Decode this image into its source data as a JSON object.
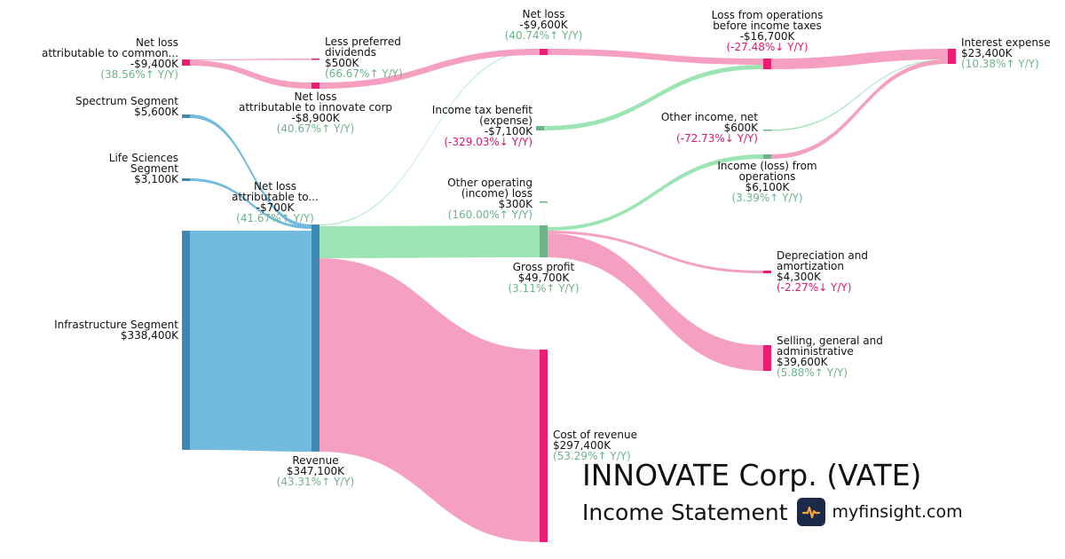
{
  "chart_data": {
    "type": "sankey",
    "units": "K",
    "colors": {
      "blue": "#6ab7dc",
      "green": "#98e3b0",
      "pink": "#f49bbe",
      "pos": "#6db38a",
      "neg": "#e0156e"
    },
    "nodes": [
      {
        "id": "infrastructure",
        "label": [
          "Infrastructure Segment"
        ],
        "value": "$338,400K",
        "change": ""
      },
      {
        "id": "spectrum",
        "label": [
          "Spectrum Segment"
        ],
        "value": "$5,600K",
        "change": ""
      },
      {
        "id": "lifesci",
        "label": [
          "Life Sciences",
          "Segment"
        ],
        "value": "$3,100K",
        "change": ""
      },
      {
        "id": "revenue",
        "label": [
          "Revenue"
        ],
        "value": "$347,100K",
        "change": "(43.31%↑ Y/Y)",
        "dir": "up"
      },
      {
        "id": "nci",
        "label": [
          "Net loss",
          "attributable to..."
        ],
        "value": "-$700K",
        "change": "(41.67%↑ Y/Y)",
        "dir": "up"
      },
      {
        "id": "gross",
        "label": [
          "Gross profit"
        ],
        "value": "$49,700K",
        "change": "(3.11%↑ Y/Y)",
        "dir": "up"
      },
      {
        "id": "cor",
        "label": [
          "Cost of revenue"
        ],
        "value": "$297,400K",
        "change": "(53.29%↑ Y/Y)",
        "dir": "up"
      },
      {
        "id": "otherop",
        "label": [
          "Other operating",
          "(income) loss"
        ],
        "value": "$300K",
        "change": "(160.00%↑ Y/Y)",
        "dir": "up"
      },
      {
        "id": "taxben",
        "label": [
          "Income tax benefit",
          "(expense)"
        ],
        "value": "-$7,100K",
        "change": "(-329.03%↓ Y/Y)",
        "dir": "down"
      },
      {
        "id": "netloss",
        "label": [
          "Net loss"
        ],
        "value": "-$9,600K",
        "change": "(40.74%↑ Y/Y)",
        "dir": "up"
      },
      {
        "id": "nlcommon",
        "label": [
          "Net loss",
          "attributable to common..."
        ],
        "value": "-$9,400K",
        "change": "(38.56%↑ Y/Y)",
        "dir": "up"
      },
      {
        "id": "pref",
        "label": [
          "Less preferred",
          "dividends"
        ],
        "value": "$500K",
        "change": "(66.67%↑ Y/Y)",
        "dir": "up"
      },
      {
        "id": "nlinnovate",
        "label": [
          "Net loss",
          "attributable to innovate corp"
        ],
        "value": "-$8,900K",
        "change": "(40.67%↑ Y/Y)",
        "dir": "up"
      },
      {
        "id": "lossops",
        "label": [
          "Loss from operations",
          "before income taxes"
        ],
        "value": "-$16,700K",
        "change": "(-27.48%↓ Y/Y)",
        "dir": "down"
      },
      {
        "id": "otherinc",
        "label": [
          "Other income, net"
        ],
        "value": "$600K",
        "change": "(-72.73%↓ Y/Y)",
        "dir": "down"
      },
      {
        "id": "incops",
        "label": [
          "Income (loss) from",
          "operations"
        ],
        "value": "$6,100K",
        "change": "(3.39%↑ Y/Y)",
        "dir": "up"
      },
      {
        "id": "interest",
        "label": [
          "Interest expense"
        ],
        "value": "$23,400K",
        "change": "(10.38%↑ Y/Y)",
        "dir": "up"
      },
      {
        "id": "da",
        "label": [
          "Depreciation and",
          "amortization"
        ],
        "value": "$4,300K",
        "change": "(-2.27%↓ Y/Y)",
        "dir": "down"
      },
      {
        "id": "sga",
        "label": [
          "Selling, general and",
          "administrative"
        ],
        "value": "$39,600K",
        "change": "(5.88%↑ Y/Y)",
        "dir": "up"
      }
    ],
    "links": [
      {
        "source": "infrastructure",
        "target": "revenue",
        "value": 338400,
        "color": "blue"
      },
      {
        "source": "spectrum",
        "target": "revenue",
        "value": 5600,
        "color": "blue"
      },
      {
        "source": "lifesci",
        "target": "revenue",
        "value": 3100,
        "color": "blue"
      },
      {
        "source": "nci",
        "target": "revenue",
        "value": 700,
        "color": "blue"
      },
      {
        "source": "nci",
        "target": "netloss",
        "value": 700,
        "color": "green"
      },
      {
        "source": "revenue",
        "target": "gross",
        "value": 49700,
        "color": "green"
      },
      {
        "source": "revenue",
        "target": "cor",
        "value": 297400,
        "color": "pink"
      },
      {
        "source": "gross",
        "target": "otherop",
        "value": 300,
        "color": "green"
      },
      {
        "source": "gross",
        "target": "incops",
        "value": 6100,
        "color": "green"
      },
      {
        "source": "gross",
        "target": "da",
        "value": 4300,
        "color": "pink"
      },
      {
        "source": "gross",
        "target": "sga",
        "value": 39600,
        "color": "pink"
      },
      {
        "source": "nlcommon",
        "target": "pref",
        "value": 500,
        "color": "pink"
      },
      {
        "source": "nlcommon",
        "target": "nlinnovate",
        "value": 8900,
        "color": "pink"
      },
      {
        "source": "nlinnovate",
        "target": "netloss",
        "value": 8900,
        "color": "pink"
      },
      {
        "source": "netloss",
        "target": "lossops",
        "value": 9600,
        "color": "pink"
      },
      {
        "source": "taxben",
        "target": "lossops",
        "value": 7100,
        "color": "green"
      },
      {
        "source": "lossops",
        "target": "interest",
        "value": 16700,
        "color": "pink"
      },
      {
        "source": "otherinc",
        "target": "interest",
        "value": 600,
        "color": "green"
      },
      {
        "source": "incops",
        "target": "interest",
        "value": 6100,
        "color": "pink"
      }
    ]
  },
  "brand": {
    "company": "INNOVATE Corp. (VATE)",
    "subtitle": "Income Statement",
    "site": "myfinsight.com",
    "logo_icon": "pulse-icon"
  }
}
